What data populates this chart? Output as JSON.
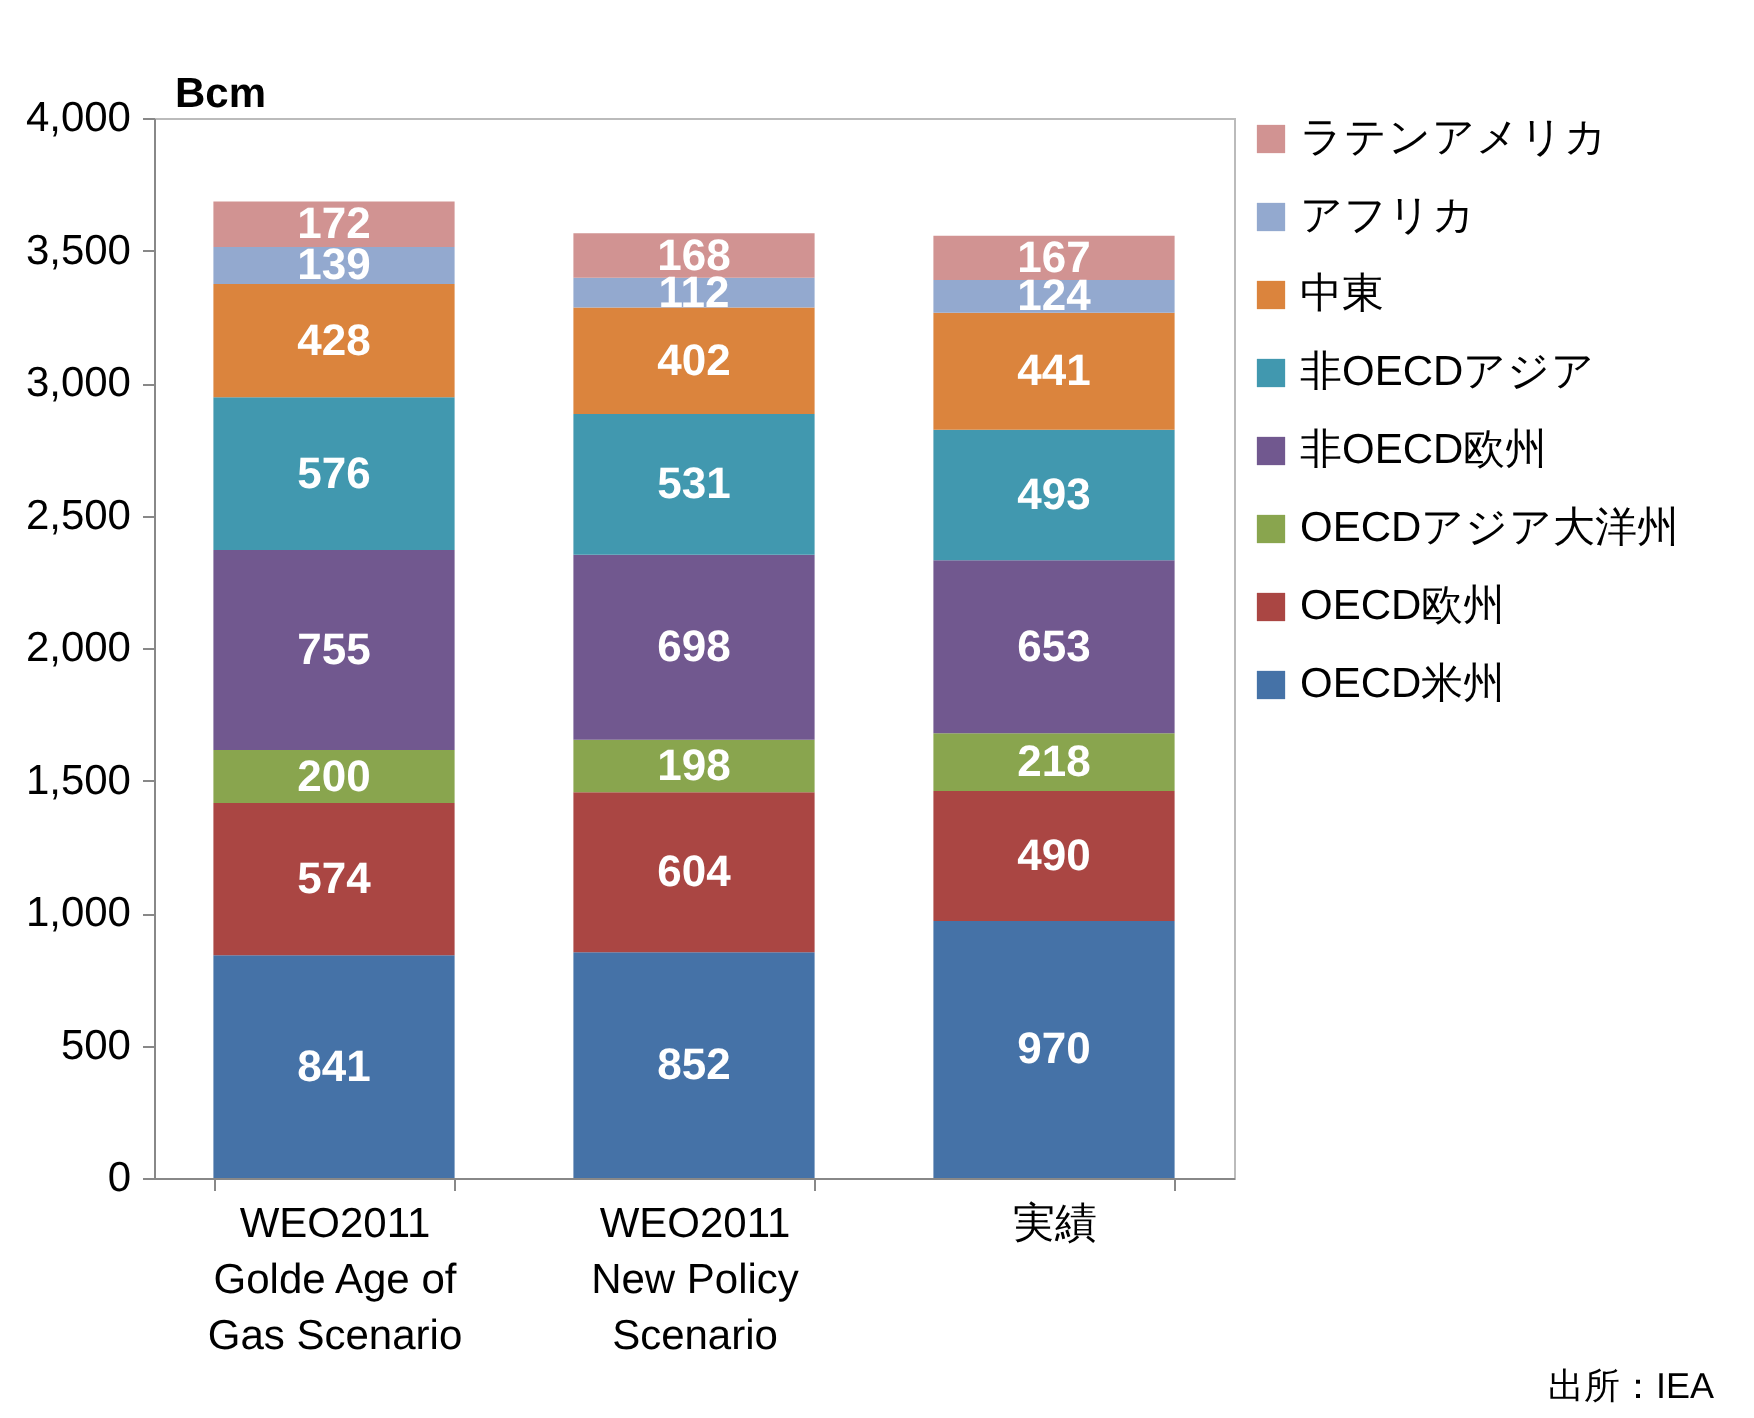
{
  "chart_data": {
    "type": "bar",
    "stacked": true,
    "ylabel": "Bcm",
    "categories": [
      "WEO2011\nGolde Age of\nGas Scenario",
      "WEO2011\nNew Policy\nScenario",
      "実績"
    ],
    "series": [
      {
        "name": "OECD米州",
        "color": "#4572a7",
        "values": [
          841,
          852,
          970
        ]
      },
      {
        "name": "OECD欧州",
        "color": "#aa4643",
        "values": [
          574,
          604,
          490
        ]
      },
      {
        "name": "OECDアジア大洋州",
        "color": "#89a54e",
        "values": [
          200,
          198,
          218
        ]
      },
      {
        "name": "非OECD欧州",
        "color": "#71588f",
        "values": [
          755,
          698,
          653
        ]
      },
      {
        "name": "非OECDアジア",
        "color": "#4198af",
        "values": [
          576,
          531,
          493
        ]
      },
      {
        "name": "中東",
        "color": "#db843d",
        "values": [
          428,
          402,
          441
        ]
      },
      {
        "name": "アフリカ",
        "color": "#93a9cf",
        "values": [
          139,
          112,
          124
        ]
      },
      {
        "name": "ラテンアメリカ",
        "color": "#d19392",
        "values": [
          172,
          168,
          167
        ]
      }
    ],
    "ylim": [
      0,
      4000
    ],
    "yticks": [
      0,
      500,
      {
        "value": 1000,
        "label": "1,000"
      },
      {
        "value": 1500,
        "label": "1,500"
      },
      {
        "value": 2000,
        "label": "2,000"
      },
      {
        "value": 2500,
        "label": "2,500"
      },
      {
        "value": 3000,
        "label": "3,000"
      },
      {
        "value": 3500,
        "label": "3,500"
      },
      {
        "value": 4000,
        "label": "4,000"
      }
    ],
    "data_labels": true,
    "legend": "right",
    "grid": false,
    "annotations": [
      "出所：IEA"
    ]
  }
}
